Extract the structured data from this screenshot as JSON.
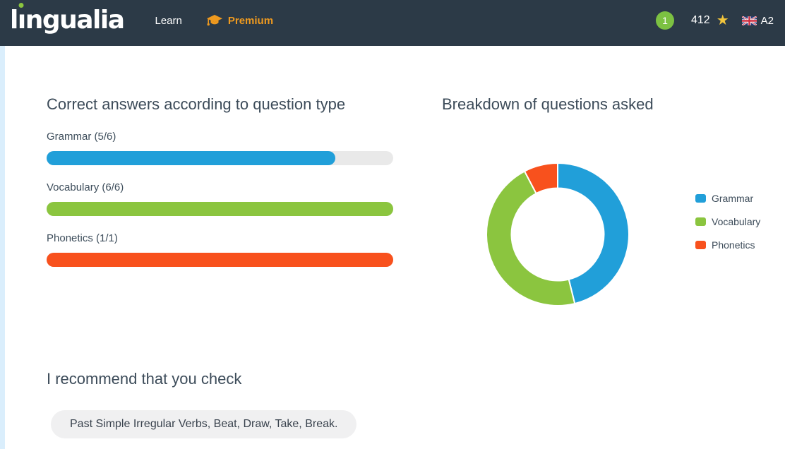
{
  "navbar": {
    "logo": {
      "part1": "l",
      "dotless_i": "ı",
      "part2": "ngualia"
    },
    "learn_label": "Learn",
    "premium_label": "Premium",
    "lesson_badge": "1",
    "points": "412",
    "level": "A2"
  },
  "colors": {
    "navbar_bg": "#2c3a47",
    "brand_green": "#8bc53f",
    "premium_orange": "#ef9a1f",
    "star_gold": "#f2c53c",
    "badge_green": "#7cc142",
    "grammar_blue": "#219fd9",
    "vocabulary_green": "#8bc53f",
    "phonetics_orange": "#f8511d",
    "track_gray": "#e9e9e9",
    "left_strip_blue": "#daeefc"
  },
  "sections": {
    "progress_title": "Correct answers according to question type",
    "breakdown_title": "Breakdown of questions asked",
    "recommend_title": "I recommend that you check",
    "recommendation": "Past Simple Irregular Verbs, Beat, Draw, Take, Break."
  },
  "chart_data": [
    {
      "type": "bar",
      "title": "Correct answers according to question type",
      "orientation": "horizontal",
      "categories": [
        "Grammar",
        "Vocabulary",
        "Phonetics"
      ],
      "labels": [
        "Grammar (5/6)",
        "Vocabulary (6/6)",
        "Phonetics (1/1)"
      ],
      "series": [
        {
          "name": "correct",
          "values": [
            5,
            6,
            1
          ]
        },
        {
          "name": "asked",
          "values": [
            6,
            6,
            1
          ]
        }
      ],
      "colors": [
        "#219fd9",
        "#8bc53f",
        "#f8511d"
      ],
      "xlim": [
        0,
        1
      ],
      "grid": false
    },
    {
      "type": "pie",
      "donut": true,
      "title": "Breakdown of questions asked",
      "categories": [
        "Grammar",
        "Vocabulary",
        "Phonetics"
      ],
      "values": [
        6,
        6,
        1
      ],
      "colors": [
        "#219fd9",
        "#8bc53f",
        "#f8511d"
      ],
      "legend_position": "right",
      "start_angle_deg": 0,
      "direction": "clockwise"
    }
  ]
}
